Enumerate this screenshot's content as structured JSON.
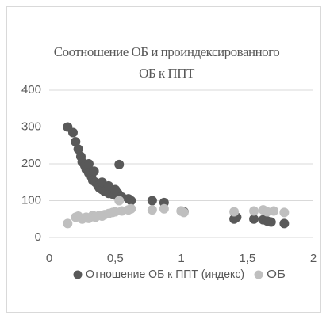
{
  "chart_data": {
    "type": "scatter",
    "title": "Соотношение ОБ и проиндексированного ОБ к ППТ",
    "xlim": [
      0,
      2
    ],
    "xticks": [
      0,
      {
        "value": 0.5,
        "label": "0,5"
      },
      1,
      {
        "value": 1.5,
        "label": "1,5"
      },
      2
    ],
    "ylim": [
      0,
      400
    ],
    "yticks": [
      0,
      100,
      200,
      300,
      400
    ],
    "grid": true,
    "legend": "bottom",
    "series": [
      {
        "name": "Отношение ОБ к ППТ (индекс)",
        "color": "#595959",
        "x": [
          0.14,
          0.18,
          0.2,
          0.22,
          0.24,
          0.25,
          0.27,
          0.28,
          0.3,
          0.32,
          0.33,
          0.35,
          0.37,
          0.38,
          0.4,
          0.42,
          0.45,
          0.48,
          0.5,
          0.52,
          0.55,
          0.53,
          0.6,
          0.62,
          0.78,
          0.87,
          1.0,
          1.02,
          1.4,
          1.42,
          1.55,
          1.62,
          1.65,
          1.68,
          1.78,
          0.3,
          0.34,
          0.4,
          0.45,
          0.5
        ],
        "values": [
          300,
          285,
          260,
          240,
          220,
          205,
          195,
          185,
          175,
          165,
          155,
          150,
          140,
          135,
          130,
          125,
          120,
          118,
          115,
          120,
          110,
          198,
          105,
          100,
          100,
          95,
          72,
          70,
          50,
          55,
          50,
          48,
          45,
          42,
          38,
          200,
          180,
          150,
          140,
          130
        ]
      },
      {
        "name": "ОБ",
        "color": "#bfbfbf",
        "x": [
          0.14,
          0.2,
          0.22,
          0.25,
          0.28,
          0.3,
          0.33,
          0.35,
          0.38,
          0.4,
          0.42,
          0.45,
          0.48,
          0.5,
          0.53,
          0.55,
          0.6,
          0.62,
          0.78,
          0.87,
          1.0,
          1.02,
          1.4,
          1.55,
          1.62,
          1.65,
          1.7,
          1.78
        ],
        "values": [
          38,
          55,
          58,
          50,
          55,
          52,
          60,
          55,
          60,
          58,
          62,
          65,
          68,
          70,
          100,
          72,
          75,
          78,
          75,
          78,
          72,
          68,
          70,
          72,
          75,
          70,
          72,
          68
        ]
      }
    ]
  }
}
